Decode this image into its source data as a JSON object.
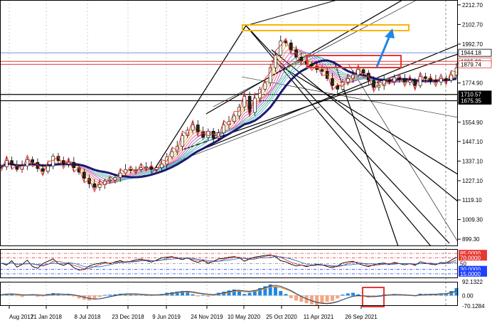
{
  "chart_data": {
    "type": "line",
    "instrument_style": "candlestick price chart with RSI and MACD panels",
    "main_panel": {
      "y_axis_ticks": [
        2212.7,
        2102.7,
        1992.7,
        1884.68,
        1774.9,
        1664.9,
        1554.9,
        1447.1,
        1337.1,
        1227.1,
        1119.1,
        1009.3,
        899.3
      ],
      "y_range": [
        860,
        2240
      ],
      "price_tags": [
        {
          "label": "1944.18",
          "style": "plain"
        },
        {
          "label": "1895.93",
          "style": "boxed"
        },
        {
          "label": "1879.74",
          "style": "boxed"
        },
        {
          "label": "1710.57",
          "style": "inverse"
        },
        {
          "label": "1675.35",
          "style": "inverse"
        }
      ],
      "close_series": [
        1305,
        1340,
        1315,
        1290,
        1310,
        1345,
        1330,
        1295,
        1280,
        1310,
        1365,
        1340,
        1320,
        1330,
        1300,
        1275,
        1240,
        1210,
        1190,
        1205,
        1225,
        1230,
        1245,
        1270,
        1290,
        1285,
        1290,
        1300,
        1305,
        1290,
        1300,
        1320,
        1360,
        1390,
        1420,
        1480,
        1510,
        1540,
        1500,
        1470,
        1505,
        1465,
        1495,
        1540,
        1560,
        1590,
        1640,
        1700,
        1610,
        1690,
        1740,
        1775,
        1860,
        1930,
        2010,
        2000,
        1960,
        1920,
        1900,
        1880,
        1870,
        1850,
        1840,
        1800,
        1760,
        1740,
        1780,
        1800,
        1820,
        1850,
        1830,
        1790,
        1750,
        1760,
        1790,
        1780,
        1805,
        1800,
        1780,
        1790,
        1760,
        1810,
        1800,
        1790,
        1780,
        1800,
        1790,
        1820,
        1860
      ],
      "highlight_zones": [
        {
          "name": "upper target zone",
          "color": "#ffb300"
        },
        {
          "name": "resistance zone",
          "color": "#e53935"
        }
      ]
    },
    "rsi_panel": {
      "levels": [
        {
          "label": "85.0000",
          "style": "red-fill"
        },
        {
          "label": "70.0000",
          "style": "red-fill"
        },
        {
          "label": "50",
          "style": "plain"
        },
        {
          "label": "30.0000",
          "style": "blue-fill"
        },
        {
          "label": "15.0000",
          "style": "blue-fill"
        }
      ],
      "values": [
        52,
        45,
        60,
        38,
        47,
        62,
        40,
        34,
        50,
        58,
        66,
        50,
        44,
        52,
        36,
        28,
        30,
        42,
        48,
        51,
        55,
        50,
        56,
        60,
        54,
        58,
        63,
        66,
        60,
        55,
        62,
        70,
        72,
        74,
        68,
        64,
        70,
        60,
        54,
        62,
        50,
        58,
        66,
        68,
        72,
        74,
        70,
        58,
        66,
        72,
        75,
        78,
        80,
        74,
        60,
        56,
        48,
        42,
        45,
        40,
        44,
        48,
        46,
        40,
        36,
        42,
        52,
        56,
        58,
        50,
        44,
        40,
        46,
        50,
        52,
        48,
        54,
        50,
        46,
        50,
        44,
        56,
        52,
        48,
        46,
        54,
        52,
        62,
        72
      ]
    },
    "macd_panel": {
      "y_ticks": [
        92.1322,
        0.0,
        -70.1284
      ],
      "histogram": [
        8,
        12,
        10,
        -4,
        -10,
        6,
        4,
        -8,
        -6,
        10,
        16,
        8,
        2,
        4,
        -6,
        -20,
        -28,
        -34,
        -26,
        -10,
        4,
        6,
        8,
        12,
        10,
        6,
        4,
        2,
        0,
        -4,
        2,
        10,
        18,
        22,
        26,
        30,
        22,
        8,
        -6,
        4,
        -8,
        6,
        18,
        26,
        34,
        40,
        30,
        10,
        18,
        36,
        50,
        62,
        74,
        60,
        30,
        10,
        -18,
        -34,
        -42,
        -52,
        -60,
        -66,
        -54,
        -42,
        -36,
        -20,
        6,
        14,
        18,
        8,
        -6,
        -14,
        -6,
        2,
        8,
        6,
        10,
        4,
        -2,
        0,
        -6,
        12,
        10,
        6,
        4,
        14,
        12,
        30,
        50
      ],
      "signal": [
        4,
        6,
        8,
        6,
        2,
        2,
        4,
        2,
        0,
        2,
        6,
        8,
        6,
        6,
        2,
        -4,
        -12,
        -20,
        -24,
        -22,
        -16,
        -8,
        -2,
        4,
        8,
        8,
        8,
        6,
        4,
        2,
        2,
        4,
        8,
        12,
        18,
        22,
        24,
        20,
        14,
        10,
        6,
        4,
        8,
        14,
        20,
        28,
        30,
        26,
        24,
        28,
        36,
        46,
        56,
        60,
        54,
        42,
        28,
        10,
        -8,
        -22,
        -34,
        -44,
        -50,
        -52,
        -48,
        -40,
        -28,
        -16,
        -6,
        -2,
        -4,
        -8,
        -8,
        -6,
        -2,
        2,
        4,
        4,
        2,
        0,
        -2,
        2,
        4,
        6,
        6,
        8,
        10,
        16,
        26
      ]
    },
    "x_axis": {
      "tick_labels": [
        "Aug 2017",
        "21 Jan 2018",
        "8 Jul 2018",
        "23 Dec 2018",
        "9 Jun 2019",
        "24 Nov 2019",
        "10 May 2020",
        "25 Oct 2020",
        "11 Apr 2021",
        "26 Sep 2021"
      ]
    },
    "colors": {
      "price": "#000000",
      "zigzag": "#e53935",
      "ma_slow": "#1a1a6e",
      "target": "#ffb300",
      "arrow": "#1e88e5",
      "rsi_main": "#000000",
      "rsi_signal": "#c62828",
      "rsi_slow": "#1565c0",
      "macd_pos": "#1e88e5",
      "macd_neg": "#f4a582",
      "macd_signal": "#ff8c00",
      "macd_line": "#0d47a1"
    }
  }
}
